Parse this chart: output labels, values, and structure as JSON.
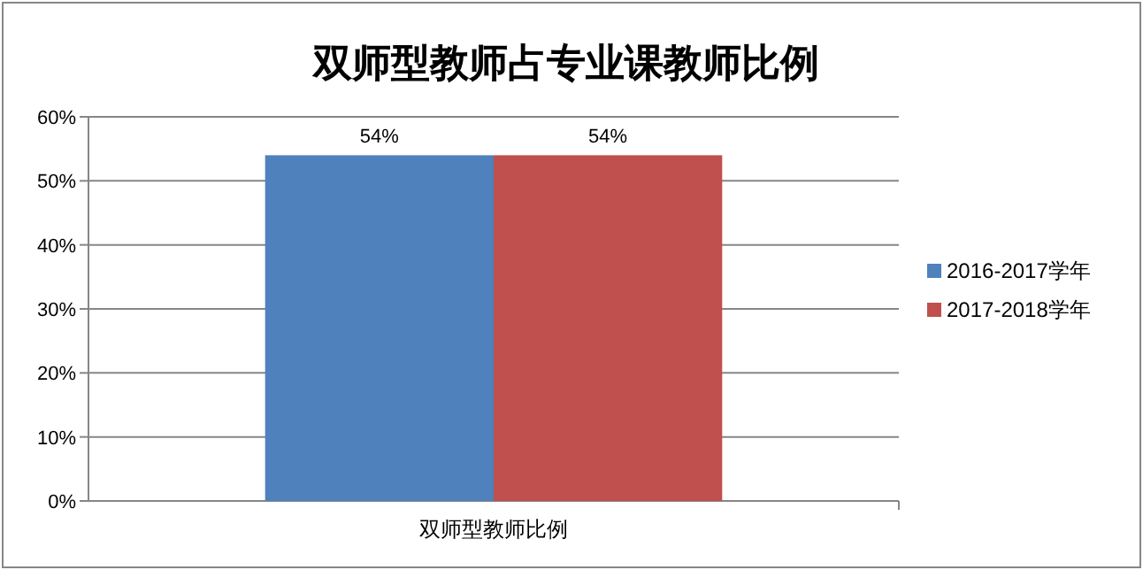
{
  "chart_data": {
    "type": "bar",
    "title": "双师型教师占专业课教师比例",
    "categories": [
      "双师型教师比例"
    ],
    "series": [
      {
        "name": "2016-2017学年",
        "color": "#4f81bd",
        "values": [
          54
        ],
        "value_labels": [
          "54%"
        ]
      },
      {
        "name": "2017-2018学年",
        "color": "#c0504d",
        "values": [
          54
        ],
        "value_labels": [
          "54%"
        ]
      }
    ],
    "ylim": [
      0,
      60
    ],
    "yticks": [
      {
        "value": 0,
        "label": "0%"
      },
      {
        "value": 10,
        "label": "10%"
      },
      {
        "value": 20,
        "label": "20%"
      },
      {
        "value": 30,
        "label": "30%"
      },
      {
        "value": 40,
        "label": "40%"
      },
      {
        "value": 50,
        "label": "50%"
      },
      {
        "value": 60,
        "label": "60%"
      }
    ],
    "grid": "y",
    "legend": "right"
  }
}
